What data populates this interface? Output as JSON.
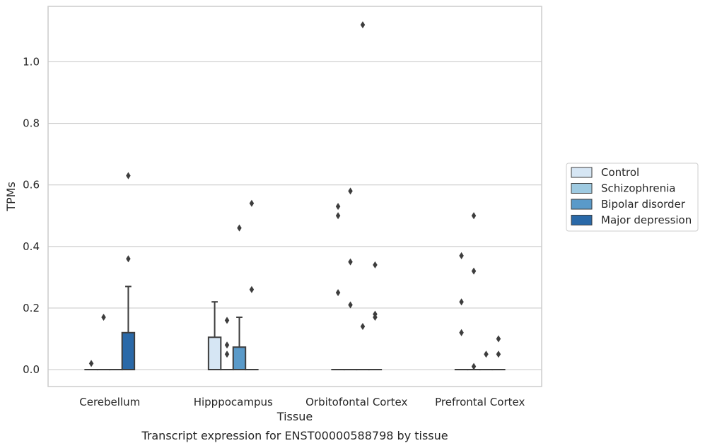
{
  "caption": "Transcript expression for ENST00000588798 by tissue",
  "chart_data": {
    "type": "box",
    "xlabel": "Tissue",
    "ylabel": "TPMs",
    "categories": [
      "Cerebellum",
      "Hipppocampus",
      "Orbitofontal Cortex",
      "Prefrontal Cortex"
    ],
    "ylim": [
      -0.055,
      1.18
    ],
    "yticks": [
      0.0,
      0.2,
      0.4,
      0.6,
      0.8,
      1.0
    ],
    "ytick_labels": [
      "0.0",
      "0.2",
      "0.4",
      "0.6",
      "0.8",
      "1.0"
    ],
    "grid": "horizontal",
    "legend_position": "center-right",
    "series": [
      {
        "name": "Control",
        "color": "#d6e6f4",
        "boxes": [
          {
            "q1": 0,
            "median": 0,
            "q3": 0,
            "whisker_low": 0,
            "whisker_high": 0,
            "outliers": [
              0.02
            ]
          },
          {
            "q1": 0,
            "median": 0,
            "q3": 0.105,
            "whisker_low": 0,
            "whisker_high": 0.22,
            "outliers": []
          },
          {
            "q1": 0,
            "median": 0,
            "q3": 0,
            "whisker_low": 0,
            "whisker_high": 0,
            "outliers": [
              0.53,
              0.5,
              0.25
            ]
          },
          {
            "q1": 0,
            "median": 0,
            "q3": 0,
            "whisker_low": 0,
            "whisker_high": 0,
            "outliers": [
              0.37,
              0.22,
              0.12
            ]
          }
        ]
      },
      {
        "name": "Schizophrenia",
        "color": "#9ecae1",
        "boxes": [
          {
            "q1": 0,
            "median": 0,
            "q3": 0,
            "whisker_low": 0,
            "whisker_high": 0,
            "outliers": [
              0.17
            ]
          },
          {
            "q1": 0,
            "median": 0,
            "q3": 0,
            "whisker_low": 0,
            "whisker_high": 0,
            "outliers": [
              0.16,
              0.08,
              0.05
            ]
          },
          {
            "q1": 0,
            "median": 0,
            "q3": 0,
            "whisker_low": 0,
            "whisker_high": 0,
            "outliers": [
              0.58,
              0.35,
              0.21
            ]
          },
          {
            "q1": 0,
            "median": 0,
            "q3": 0,
            "whisker_low": 0,
            "whisker_high": 0,
            "outliers": [
              0.5,
              0.32,
              0.01
            ]
          }
        ]
      },
      {
        "name": "Bipolar disorder",
        "color": "#5a9ac9",
        "boxes": [
          {
            "q1": 0,
            "median": 0,
            "q3": 0,
            "whisker_low": 0,
            "whisker_high": 0,
            "outliers": []
          },
          {
            "q1": 0,
            "median": 0,
            "q3": 0.073,
            "whisker_low": 0,
            "whisker_high": 0.17,
            "outliers": [
              0.46
            ]
          },
          {
            "q1": 0,
            "median": 0,
            "q3": 0,
            "whisker_low": 0,
            "whisker_high": 0,
            "outliers": [
              1.12,
              0.14
            ]
          },
          {
            "q1": 0,
            "median": 0,
            "q3": 0,
            "whisker_low": 0,
            "whisker_high": 0,
            "outliers": [
              0.05
            ]
          }
        ]
      },
      {
        "name": "Major depression",
        "color": "#2a69a8",
        "boxes": [
          {
            "q1": 0,
            "median": 0,
            "q3": 0.12,
            "whisker_low": 0,
            "whisker_high": 0.27,
            "outliers": [
              0.63,
              0.36
            ]
          },
          {
            "q1": 0,
            "median": 0,
            "q3": 0,
            "whisker_low": 0,
            "whisker_high": 0,
            "outliers": [
              0.54,
              0.26
            ]
          },
          {
            "q1": 0,
            "median": 0,
            "q3": 0,
            "whisker_low": 0,
            "whisker_high": 0,
            "outliers": [
              0.34,
              0.18,
              0.17
            ]
          },
          {
            "q1": 0,
            "median": 0,
            "q3": 0,
            "whisker_low": 0,
            "whisker_high": 0,
            "outliers": [
              0.1,
              0.05
            ]
          }
        ]
      }
    ]
  }
}
